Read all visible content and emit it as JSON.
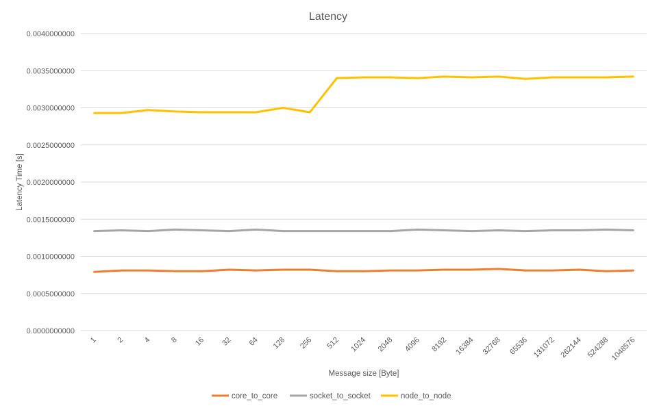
{
  "chart_data": {
    "type": "line",
    "title": "Latency",
    "xlabel": "Message size [Byte]",
    "ylabel": "Latency Time [s]",
    "ylim": [
      0,
      0.004
    ],
    "yticks": [
      "0.0000000000",
      "0.0005000000",
      "0.0010000000",
      "0.0015000000",
      "0.0020000000",
      "0.0025000000",
      "0.0030000000",
      "0.0035000000",
      "0.0040000000"
    ],
    "ytick_values": [
      0,
      0.0005,
      0.001,
      0.0015,
      0.002,
      0.0025,
      0.003,
      0.0035,
      0.004
    ],
    "grid": true,
    "legend_position": "bottom",
    "categories": [
      "1",
      "2",
      "4",
      "8",
      "16",
      "32",
      "64",
      "128",
      "256",
      "512",
      "1024",
      "2048",
      "4096",
      "8192",
      "16384",
      "32768",
      "65536",
      "131072",
      "262144",
      "524288",
      "1048576"
    ],
    "series": [
      {
        "name": "core_to_core",
        "color": "#ed7d31",
        "values": [
          0.00079,
          0.00081,
          0.00081,
          0.0008,
          0.0008,
          0.00082,
          0.00081,
          0.00082,
          0.00082,
          0.0008,
          0.0008,
          0.00081,
          0.00081,
          0.00082,
          0.00082,
          0.00083,
          0.00081,
          0.00081,
          0.00082,
          0.0008,
          0.00081
        ]
      },
      {
        "name": "socket_to_socket",
        "color": "#a5a5a5",
        "values": [
          0.00134,
          0.00135,
          0.00134,
          0.00136,
          0.00135,
          0.00134,
          0.00136,
          0.00134,
          0.00134,
          0.00134,
          0.00134,
          0.00134,
          0.00136,
          0.00135,
          0.00134,
          0.00135,
          0.00134,
          0.00135,
          0.00135,
          0.00136,
          0.00135
        ]
      },
      {
        "name": "node_to_node",
        "color": "#ffc000",
        "values": [
          0.00293,
          0.00293,
          0.00297,
          0.00295,
          0.00294,
          0.00294,
          0.00294,
          0.003,
          0.00294,
          0.0034,
          0.00341,
          0.00341,
          0.0034,
          0.00342,
          0.00341,
          0.00342,
          0.00339,
          0.00341,
          0.00341,
          0.00341,
          0.00342
        ]
      }
    ]
  }
}
